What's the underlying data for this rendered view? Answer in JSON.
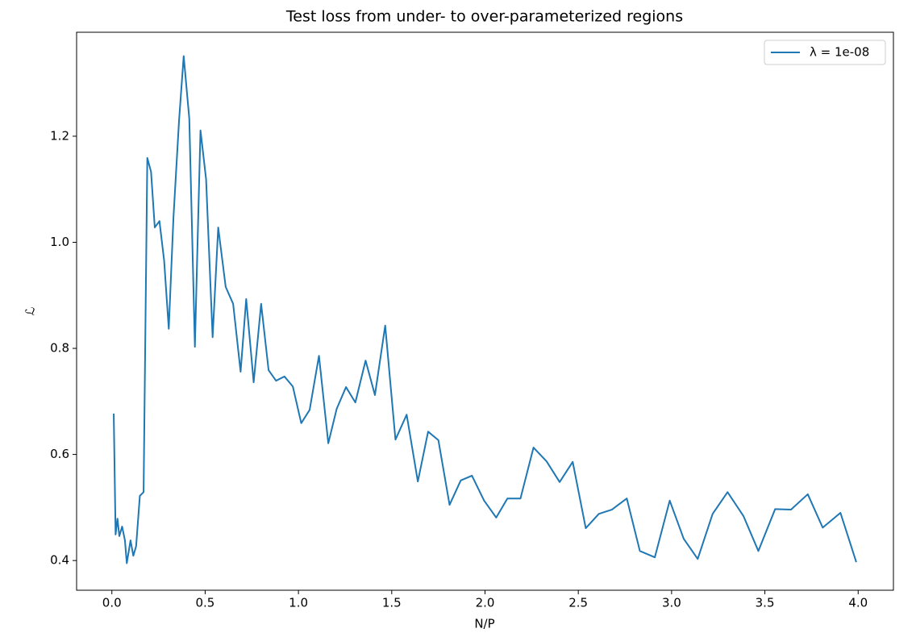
{
  "chart_data": {
    "type": "line",
    "title": "Test loss from under- to over-parameterized regions",
    "x_label": "N/P",
    "y_label": "ℒ",
    "x": [
      0.01,
      0.02,
      0.03,
      0.04,
      0.055,
      0.07,
      0.08,
      0.1,
      0.115,
      0.13,
      0.15,
      0.17,
      0.19,
      0.21,
      0.23,
      0.255,
      0.28,
      0.305,
      0.33,
      0.36,
      0.385,
      0.415,
      0.445,
      0.465,
      0.475,
      0.505,
      0.54,
      0.57,
      0.61,
      0.65,
      0.69,
      0.72,
      0.76,
      0.8,
      0.84,
      0.88,
      0.925,
      0.97,
      1.015,
      1.06,
      1.11,
      1.16,
      1.205,
      1.255,
      1.305,
      1.36,
      1.41,
      1.465,
      1.52,
      1.58,
      1.64,
      1.695,
      1.75,
      1.81,
      1.87,
      1.93,
      1.995,
      2.06,
      2.12,
      2.19,
      2.26,
      2.33,
      2.4,
      2.47,
      2.54,
      2.61,
      2.68,
      2.76,
      2.83,
      2.91,
      2.99,
      3.065,
      3.14,
      3.22,
      3.3,
      3.385,
      3.465,
      3.555,
      3.64,
      3.73,
      3.81,
      3.905,
      3.99
    ],
    "series": [
      {
        "name": "λ = 1e-08",
        "color": "#1f77b4",
        "values": [
          0.677,
          0.449,
          0.479,
          0.446,
          0.464,
          0.438,
          0.395,
          0.438,
          0.409,
          0.427,
          0.522,
          0.529,
          1.159,
          1.133,
          1.028,
          1.04,
          0.966,
          0.837,
          1.046,
          1.229,
          1.351,
          1.233,
          0.803,
          1.077,
          1.211,
          1.119,
          0.821,
          1.028,
          0.916,
          0.884,
          0.756,
          0.893,
          0.736,
          0.884,
          0.759,
          0.739,
          0.747,
          0.728,
          0.659,
          0.684,
          0.786,
          0.621,
          0.686,
          0.727,
          0.698,
          0.777,
          0.712,
          0.843,
          0.628,
          0.675,
          0.549,
          0.643,
          0.627,
          0.505,
          0.551,
          0.56,
          0.513,
          0.481,
          0.517,
          0.517,
          0.613,
          0.587,
          0.548,
          0.586,
          0.461,
          0.488,
          0.496,
          0.517,
          0.418,
          0.406,
          0.513,
          0.441,
          0.403,
          0.488,
          0.529,
          0.484,
          0.418,
          0.497,
          0.496,
          0.525,
          0.462,
          0.49,
          0.397
        ]
      }
    ],
    "xlim": [
      -0.189,
      4.189
    ],
    "xticks": [
      {
        "value": 0,
        "label": "0.0"
      },
      0.5,
      {
        "value": 1,
        "label": "1.0"
      },
      1.5,
      {
        "value": 2,
        "label": "2.0"
      },
      2.5,
      {
        "value": 3,
        "label": "3.0"
      },
      3.5,
      {
        "value": 4,
        "label": "4.0"
      }
    ],
    "ylim": [
      0.344,
      1.396
    ],
    "yticks": [
      0.4,
      0.6,
      0.8,
      {
        "value": 1,
        "label": "1.0"
      },
      1.2
    ],
    "grid": false,
    "legend": "upper right"
  }
}
